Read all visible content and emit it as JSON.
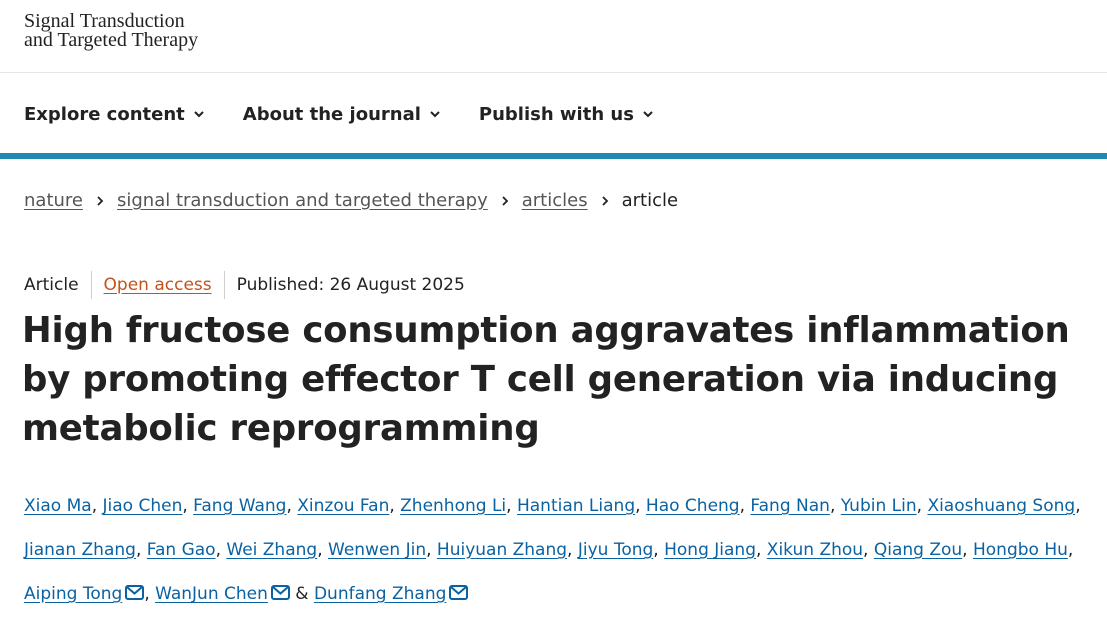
{
  "journal": {
    "line1": "Signal Transduction",
    "line2": "and Targeted Therapy"
  },
  "nav": {
    "items": [
      {
        "label": "Explore content"
      },
      {
        "label": "About the journal"
      },
      {
        "label": "Publish with us"
      }
    ]
  },
  "breadcrumb": {
    "items": [
      "nature",
      "signal transduction and targeted therapy",
      "articles"
    ],
    "current": "article"
  },
  "meta": {
    "type": "Article",
    "access": "Open access",
    "published": "Published: 26 August 2025"
  },
  "title": "High fructose consumption aggravates inflammation by promoting effector T cell generation via inducing metabolic reprogramming",
  "authors": [
    "Xiao Ma",
    "Jiao Chen",
    "Fang Wang",
    "Xinzou Fan",
    "Zhenhong Li",
    "Hantian Liang",
    "Hao Cheng",
    "Fang Nan",
    "Yubin Lin",
    "Xiaoshuang Song",
    "Jianan Zhang",
    "Fan Gao",
    "Wei Zhang",
    "Wenwen Jin",
    "Huiyuan Zhang",
    "Jiyu Tong",
    "Hong Jiang",
    "Xikun Zhou",
    "Qiang Zou",
    "Hongbo Hu",
    "Aiping Tong",
    "WanJun Chen",
    "Dunfang Zhang"
  ],
  "author_separators": {
    "comma": ",",
    "ampersand": "&"
  },
  "colors": {
    "accent_bar": "#1f8bb0",
    "author_link": "#0a62a3",
    "open_access": "#c4521b"
  },
  "icons": {
    "nav_chevron": "chevron-down-icon",
    "breadcrumb_sep": "chevron-right-icon",
    "email": "envelope-icon"
  }
}
